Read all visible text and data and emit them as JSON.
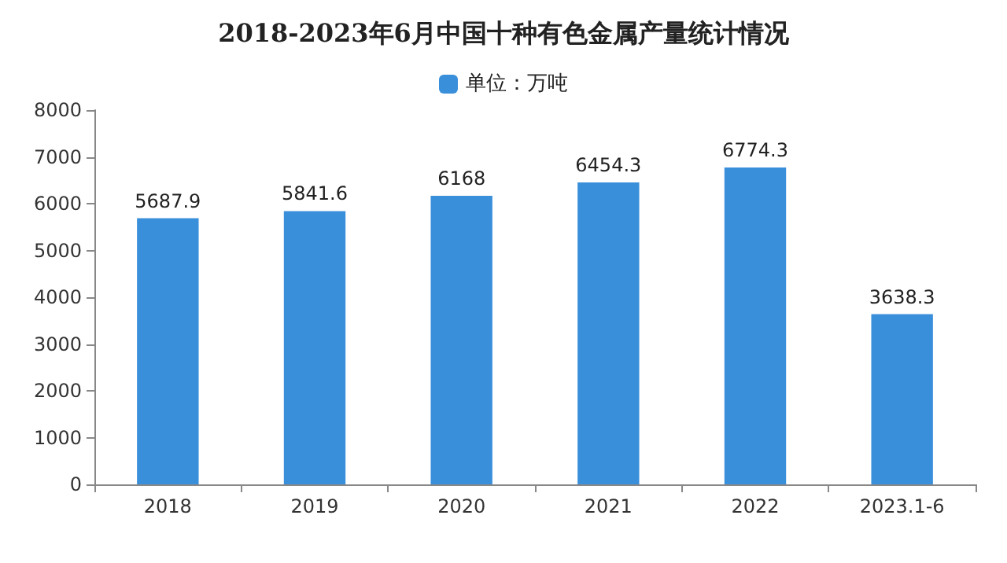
{
  "chart_data": {
    "type": "bar",
    "title": "2018-2023年6月中国十种有色金属产量统计情况",
    "categories": [
      "2018",
      "2019",
      "2020",
      "2021",
      "2022",
      "2023.1-6"
    ],
    "series": [
      {
        "name": "单位：万吨",
        "color": "#3a8fdb",
        "values": [
          5687.9,
          5841.6,
          6168,
          6454.3,
          6774.3,
          3638.3
        ]
      }
    ],
    "value_labels": [
      "5687.9",
      "5841.6",
      "6168",
      "6454.3",
      "6774.3",
      "3638.3"
    ],
    "ylim": [
      0,
      8000
    ],
    "yticks": [
      0,
      1000,
      2000,
      3000,
      4000,
      5000,
      6000,
      7000,
      8000
    ],
    "grid": false,
    "legend": "top"
  }
}
